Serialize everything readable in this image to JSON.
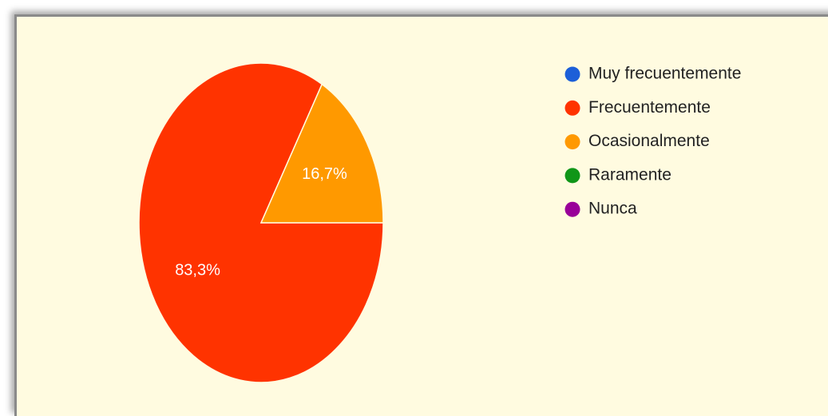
{
  "chart_data": {
    "type": "pie",
    "categories": [
      "Muy frecuentemente",
      "Frecuentemente",
      "Ocasionalmente",
      "Raramente",
      "Nunca"
    ],
    "values": [
      0,
      83.3,
      16.7,
      0,
      0
    ],
    "value_labels": [
      null,
      "83,3%",
      "16,7%",
      null,
      null
    ],
    "colors": [
      "#1c5fd8",
      "#ff3300",
      "#ff9900",
      "#109618",
      "#990099"
    ],
    "legend": "right"
  }
}
